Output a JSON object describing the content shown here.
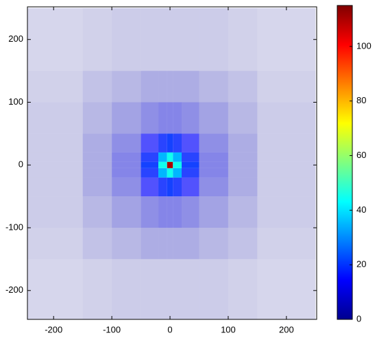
{
  "chart_data": {
    "type": "heatmap",
    "x_edges": [
      -250,
      -150,
      -100,
      -50,
      -20,
      -5,
      5,
      20,
      50,
      100,
      150,
      250
    ],
    "y_edges": [
      -250,
      -150,
      -100,
      -50,
      -20,
      -5,
      5,
      20,
      50,
      100,
      150,
      250
    ],
    "z": [
      [
        1,
        1.5,
        2,
        2,
        2,
        2,
        2,
        2,
        2,
        1.5,
        1
      ],
      [
        1.5,
        3,
        4,
        5,
        5,
        5,
        5,
        5,
        4,
        3,
        1.5
      ],
      [
        2,
        4,
        6,
        8,
        9,
        9,
        9,
        8,
        6,
        4,
        2
      ],
      [
        2,
        5,
        8,
        14,
        18,
        20,
        18,
        14,
        8,
        5,
        2
      ],
      [
        2,
        5,
        9,
        18,
        35,
        45,
        35,
        18,
        9,
        5,
        2
      ],
      [
        2,
        5,
        9,
        20,
        45,
        110,
        45,
        20,
        9,
        5,
        2
      ],
      [
        2,
        5,
        9,
        18,
        35,
        45,
        35,
        18,
        9,
        5,
        2
      ],
      [
        2,
        5,
        8,
        14,
        18,
        20,
        18,
        14,
        8,
        5,
        2
      ],
      [
        2,
        4,
        6,
        8,
        9,
        9,
        9,
        8,
        6,
        4,
        2
      ],
      [
        1.5,
        3,
        4,
        5,
        5,
        5,
        5,
        5,
        4,
        3,
        1.5
      ],
      [
        1,
        1.5,
        2,
        2,
        2,
        2,
        2,
        2,
        2,
        1.5,
        1
      ]
    ],
    "colormap": "jet",
    "xlim": [
      -245,
      252
    ],
    "ylim": [
      -246,
      252
    ],
    "xticks": [
      -200,
      -100,
      0,
      100,
      200
    ],
    "yticks": [
      -200,
      -100,
      0,
      100,
      200
    ],
    "clim": [
      0,
      115
    ],
    "colorbar_ticks": [
      0,
      20,
      40,
      60,
      80,
      100
    ]
  }
}
